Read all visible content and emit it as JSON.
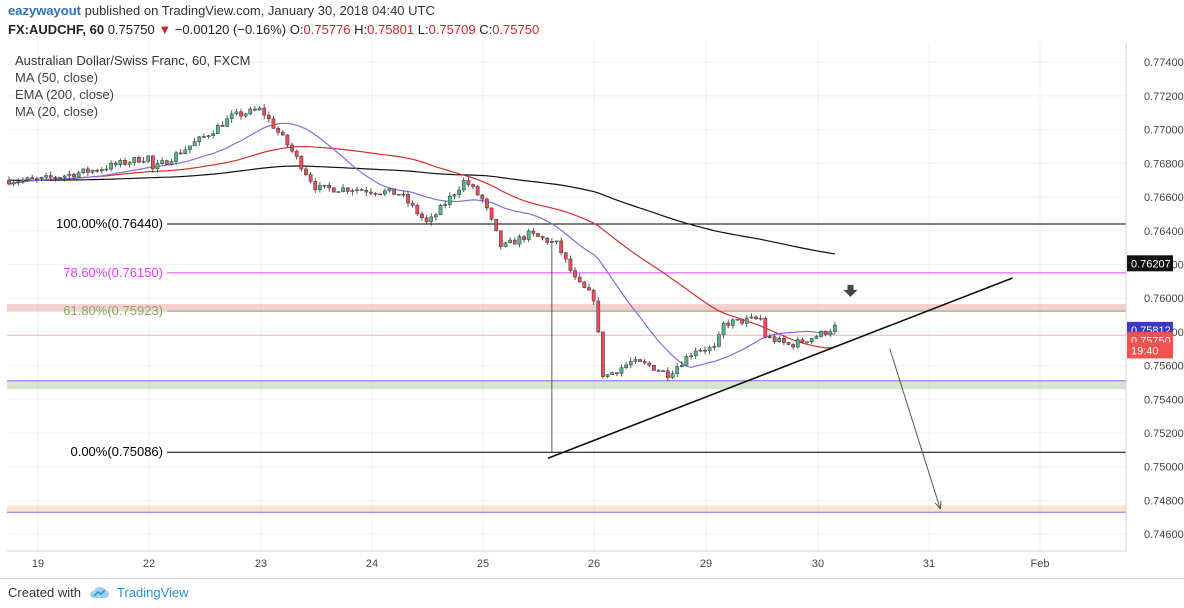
{
  "header": {
    "author": "eazywayout",
    "published_text": "published on TradingView.com, January 30, 2018 04:40 UTC",
    "symbol": "FX:AUDCHF, 60",
    "last": "0.75750",
    "change_arrow": "▼",
    "change": "−0.00120 (−0.16%)",
    "open_label": "O:",
    "open": "0.75776",
    "high_label": "H:",
    "high": "0.75801",
    "low_label": "L:",
    "low": "0.75709",
    "close_label": "C:",
    "close": "0.75750"
  },
  "legend": {
    "title": "Australian Dollar/Swiss Franc, 60, FXCM",
    "ma50": "MA (50, close)",
    "ema200": "EMA (200, close)",
    "ma20": "MA (20, close)"
  },
  "colors": {
    "up": "#53b987",
    "down": "#eb4d5c",
    "ma50": "#d32f2f",
    "ema200": "#111111",
    "ma20": "#7e6fe3",
    "fib100": "#000000",
    "fib786": "#e040fb",
    "fib618": "#7cad5c",
    "trendline": "#111111",
    "arrow": "#555555"
  },
  "chart_data": {
    "type": "candlestick",
    "ylim": [
      0.745,
      0.7752
    ],
    "y_ticks": [
      "0.77400",
      "0.77200",
      "0.77000",
      "0.76800",
      "0.76600",
      "0.76400",
      "0.76200",
      "0.76000",
      "0.75800",
      "0.75600",
      "0.75400",
      "0.75200",
      "0.75000",
      "0.74800",
      "0.74600"
    ],
    "x_ticks": [
      "19",
      "22",
      "23",
      "24",
      "25",
      "26",
      "29",
      "30",
      "31",
      "Feb"
    ],
    "price_labels": [
      {
        "text": "0.76207",
        "value": 0.76207,
        "bg": "#111111",
        "fg": "#ffffff"
      },
      {
        "text": "0.75812",
        "value": 0.75812,
        "bg": "#3f37c9",
        "fg": "#ffffff"
      },
      {
        "text": "0.75753",
        "value": 0.75753,
        "bg": "#e53935",
        "fg": "#ffffff"
      },
      {
        "text": "0.75750",
        "value": 0.7575,
        "bg": "#ef5350",
        "fg": "#ffffff"
      },
      {
        "text": "19:40",
        "value": 0.7569,
        "bg": "#ef5350",
        "fg": "#ffffff"
      }
    ],
    "fib_levels": [
      {
        "label": "100.00%(0.76440)",
        "value": 0.7644
      },
      {
        "label": "78.60%(0.76150)",
        "value": 0.7615
      },
      {
        "label": "61.80%(0.75923)",
        "value": 0.75923
      },
      {
        "label": "0.00%(0.75086)",
        "value": 0.75086
      }
    ],
    "zones": [
      {
        "name": "resistance",
        "from": 0.7592,
        "to": 0.75965
      },
      {
        "name": "support",
        "from": 0.7546,
        "to": 0.7551
      },
      {
        "name": "target",
        "from": 0.7473,
        "to": 0.7477
      }
    ],
    "trendline": {
      "from": [
        "25 14:00",
        0.7505
      ],
      "to": [
        "31 18:00",
        0.7612
      ]
    },
    "projection_arrow": {
      "from": [
        "30 09:00",
        0.757
      ],
      "to": [
        "31 02:00",
        0.7475
      ]
    },
    "peak_markers": [
      [
        "28 18:00",
        0.7602
      ],
      [
        "30 07:00",
        0.7602
      ]
    ]
  }
}
